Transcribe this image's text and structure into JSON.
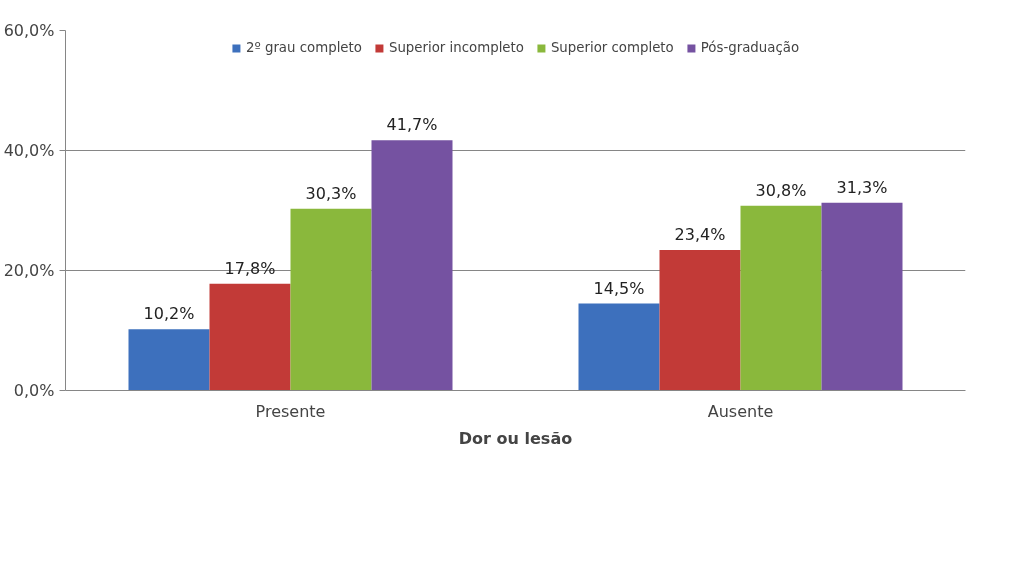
{
  "chart_data": {
    "type": "bar",
    "xlabel": "Dor ou lesão",
    "categories": [
      "Presente",
      "Ausente"
    ],
    "series": [
      {
        "name": "2º grau completo",
        "color": "#3d70bd",
        "values": [
          10.2,
          14.5
        ],
        "value_labels": [
          "10,2%",
          "14,5%"
        ]
      },
      {
        "name": "Superior incompleto",
        "color": "#c23a37",
        "values": [
          17.8,
          23.4
        ],
        "value_labels": [
          "17,8%",
          "23,4%"
        ]
      },
      {
        "name": "Superior completo",
        "color": "#8ab83c",
        "values": [
          30.3,
          30.8
        ],
        "value_labels": [
          "30,3%",
          "30,8%"
        ]
      },
      {
        "name": "Pós-graduação",
        "color": "#7552a1",
        "values": [
          41.7,
          31.3
        ],
        "value_labels": [
          "41,7%",
          "31,3%"
        ]
      }
    ],
    "ylim": [
      0,
      60
    ],
    "yticks": [
      {
        "value": 0,
        "label": "0,0%"
      },
      {
        "value": 20,
        "label": "20,0%"
      },
      {
        "value": 40,
        "label": "40,0%"
      },
      {
        "value": 60,
        "label": "60,0%"
      }
    ],
    "grid": "y",
    "legend": "top"
  }
}
